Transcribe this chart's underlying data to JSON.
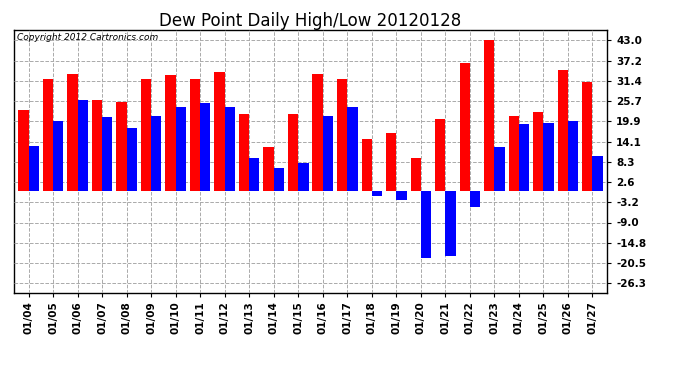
{
  "title": "Dew Point Daily High/Low 20120128",
  "copyright": "Copyright 2012 Cartronics.com",
  "dates": [
    "01/04",
    "01/05",
    "01/06",
    "01/07",
    "01/08",
    "01/09",
    "01/10",
    "01/11",
    "01/12",
    "01/13",
    "01/14",
    "01/15",
    "01/16",
    "01/17",
    "01/18",
    "01/19",
    "01/20",
    "01/21",
    "01/22",
    "01/23",
    "01/24",
    "01/25",
    "01/26",
    "01/27"
  ],
  "high_values": [
    23.0,
    32.0,
    33.5,
    26.0,
    25.5,
    32.0,
    33.0,
    32.0,
    34.0,
    22.0,
    12.5,
    22.0,
    33.5,
    32.0,
    15.0,
    16.5,
    9.5,
    20.5,
    36.5,
    43.0,
    21.5,
    22.5,
    34.5,
    31.0
  ],
  "low_values": [
    13.0,
    20.0,
    26.0,
    21.0,
    18.0,
    21.5,
    24.0,
    25.0,
    24.0,
    9.5,
    6.5,
    8.0,
    21.5,
    24.0,
    -1.5,
    -2.5,
    -19.0,
    -18.5,
    -4.5,
    12.5,
    19.0,
    19.5,
    20.0,
    10.0
  ],
  "high_color": "#ff0000",
  "low_color": "#0000ff",
  "bg_color": "#ffffff",
  "plot_bg_color": "#ffffff",
  "grid_color": "#aaaaaa",
  "yticks": [
    43.0,
    37.2,
    31.4,
    25.7,
    19.9,
    14.1,
    8.3,
    2.6,
    -3.2,
    -9.0,
    -14.8,
    -20.5,
    -26.3
  ],
  "ylim": [
    -29,
    46
  ],
  "bar_width": 0.42,
  "title_fontsize": 12,
  "tick_fontsize": 7.5,
  "copyright_fontsize": 6.5
}
